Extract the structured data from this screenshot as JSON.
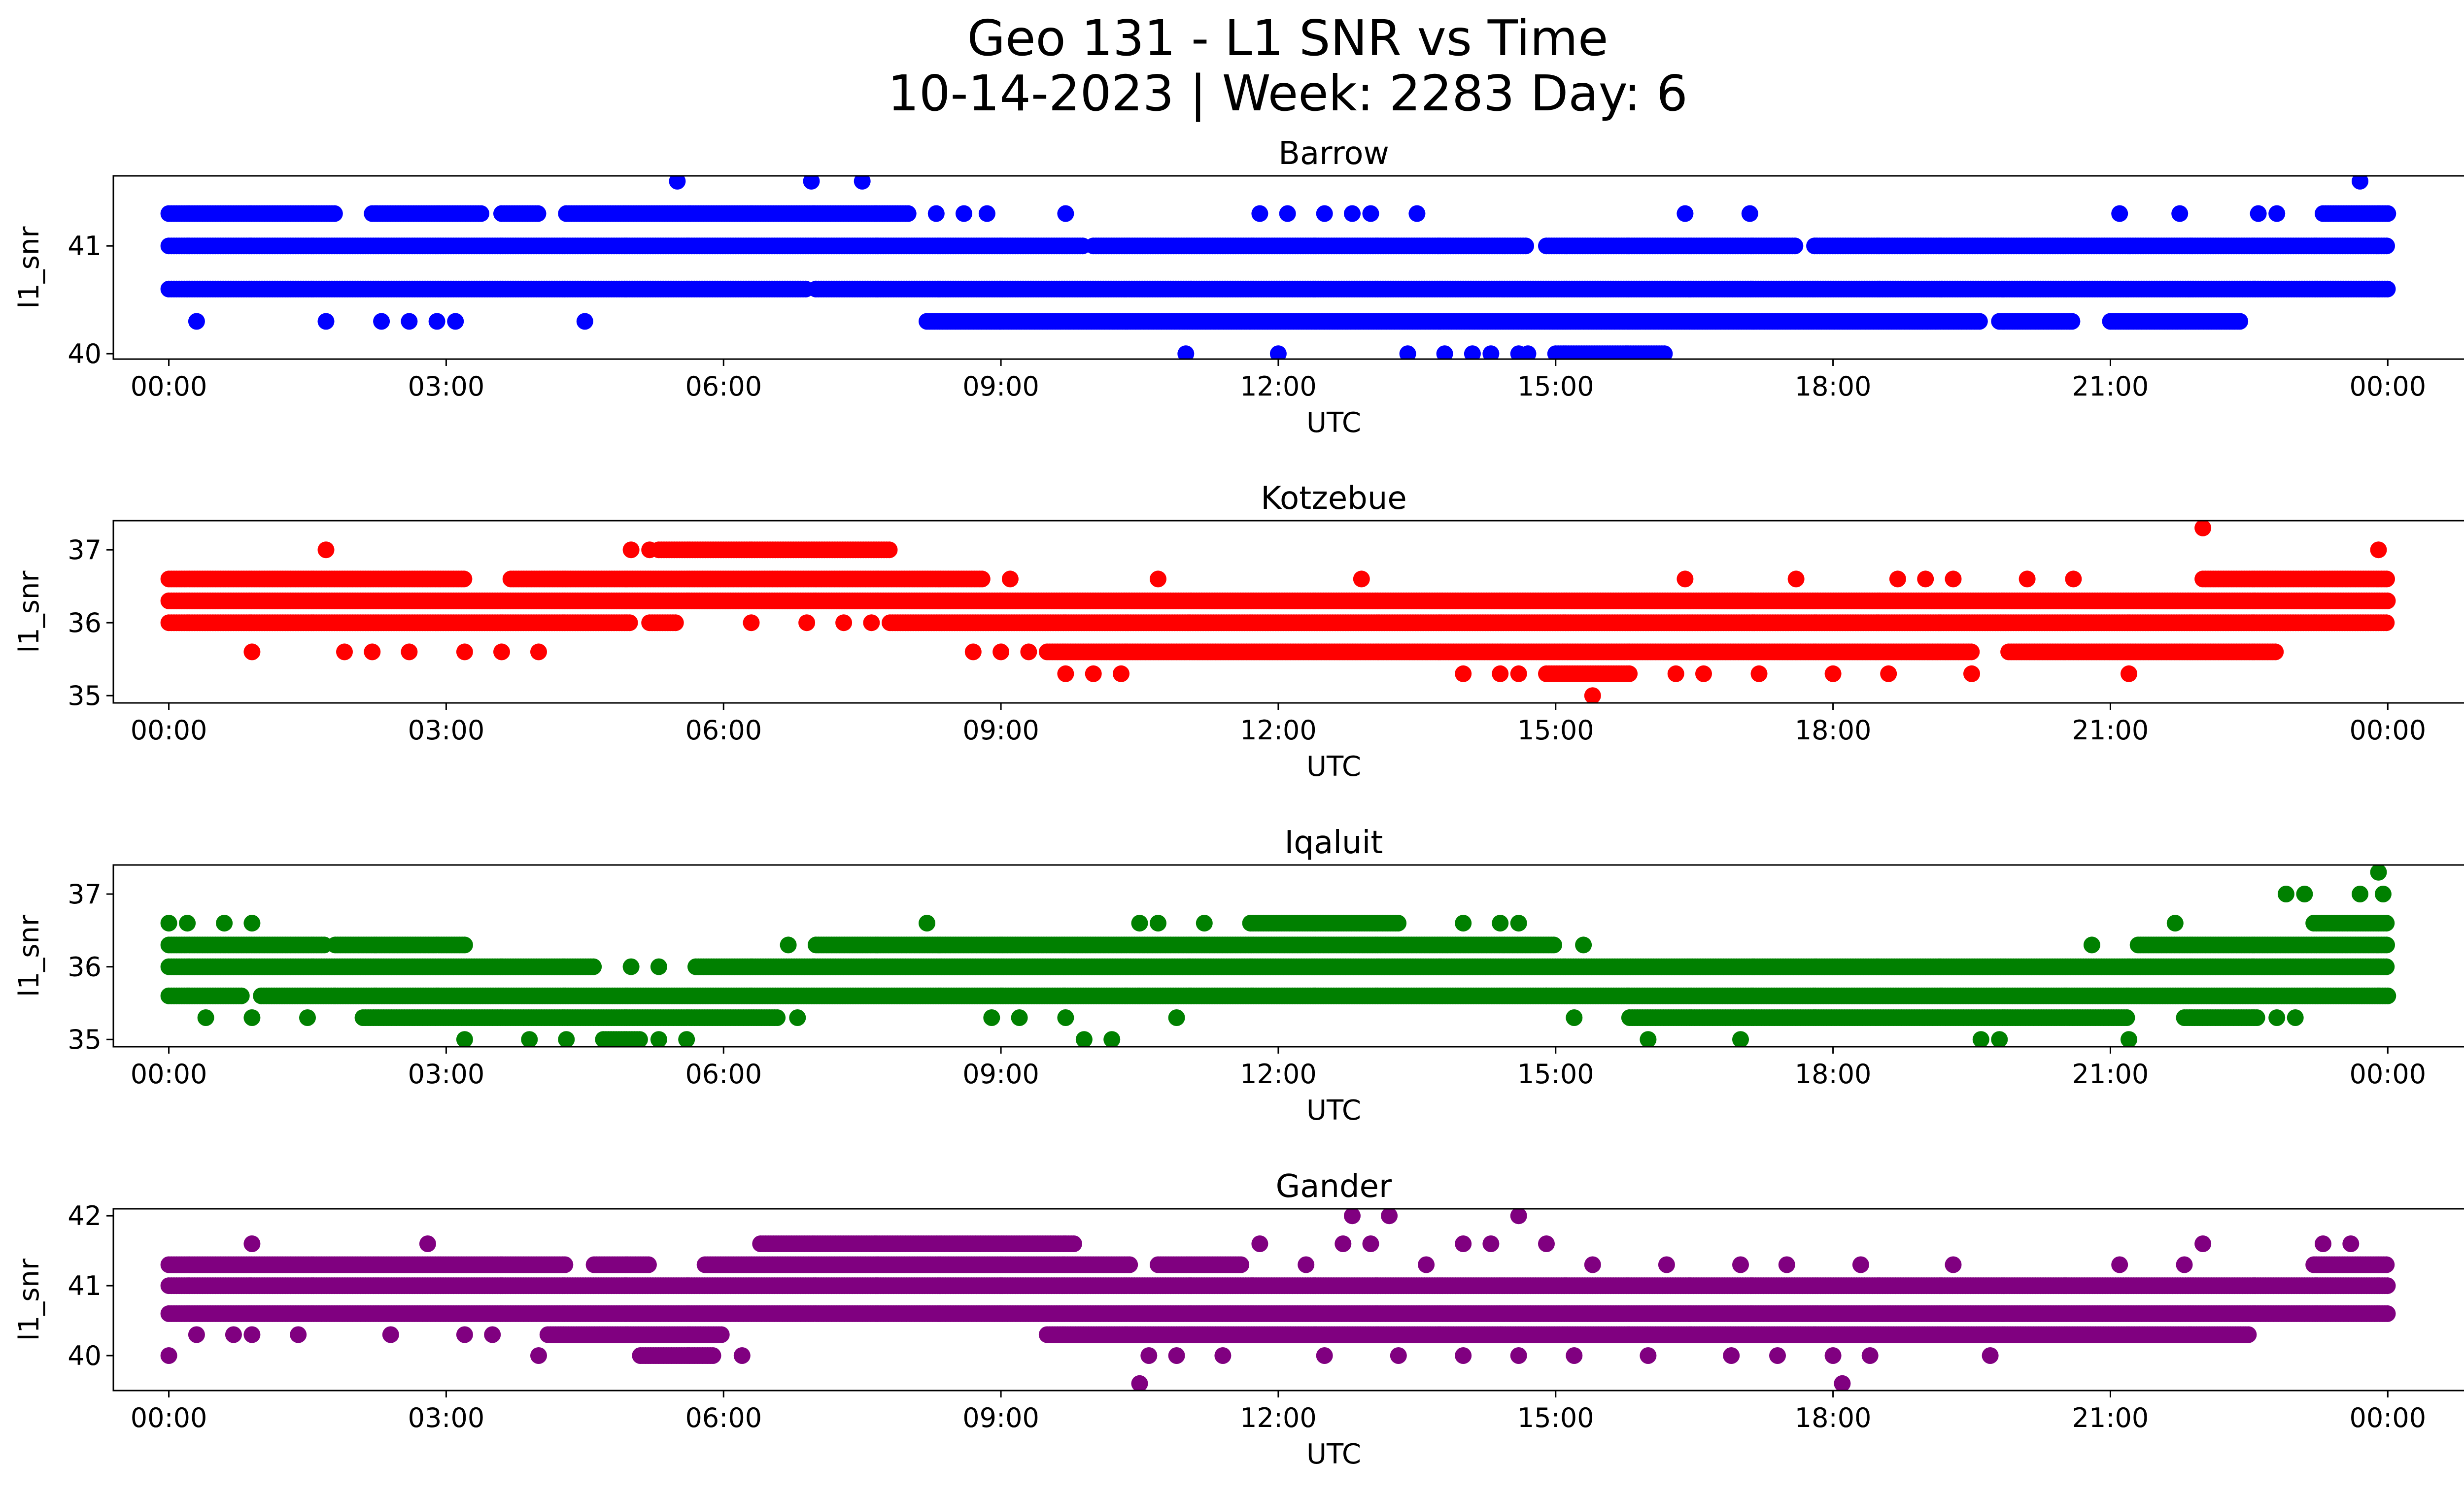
{
  "figure": {
    "title_line1": "Geo 131 - L1 SNR vs Time",
    "title_line2": "10-14-2023 | Week: 2283 Day: 6"
  },
  "chart_data": [
    {
      "type": "scatter",
      "title": "Barrow",
      "xlabel": "UTC",
      "ylabel": "l1_snr",
      "color": "#0000ff",
      "x_unit": "hours UTC",
      "xlim": [
        -0.6,
        25.8
      ],
      "ylim": [
        39.95,
        41.65
      ],
      "xticks": [
        0,
        3,
        6,
        9,
        12,
        15,
        18,
        21,
        24
      ],
      "xtick_labels": [
        "00:00",
        "03:00",
        "06:00",
        "09:00",
        "12:00",
        "15:00",
        "18:00",
        "21:00",
        "00:00"
      ],
      "yticks": [
        40,
        41
      ],
      "yticks_labels": [
        "40",
        "41"
      ],
      "bands": [
        {
          "y": 41.0,
          "ranges": [
            [
              0.0,
              9.9
            ],
            [
              10.0,
              14.7
            ],
            [
              14.9,
              17.6
            ],
            [
              17.8,
              24.0
            ]
          ]
        },
        {
          "y": 40.6,
          "ranges": [
            [
              0.0,
              6.9
            ],
            [
              7.0,
              24.0
            ]
          ]
        },
        {
          "y": 41.3,
          "ranges": [
            [
              0.0,
              1.8
            ],
            [
              2.2,
              3.4
            ],
            [
              3.6,
              4.0
            ],
            [
              4.3,
              8.0
            ],
            [
              23.3,
              24.0
            ]
          ]
        },
        {
          "y": 40.3,
          "ranges": [
            [
              8.2,
              9.0
            ],
            [
              9.0,
              19.6
            ],
            [
              19.8,
              20.6
            ],
            [
              21.0,
              22.4
            ]
          ]
        },
        {
          "y": 40.0,
          "ranges": [
            [
              15.0,
              16.2
            ]
          ]
        }
      ],
      "points": [
        {
          "y": 41.6,
          "x": [
            5.5,
            6.95,
            7.5,
            23.7
          ]
        },
        {
          "y": 41.3,
          "x": [
            8.3,
            8.6,
            8.85,
            9.7,
            11.8,
            12.1,
            12.5,
            12.8,
            13.0,
            13.5,
            16.4,
            17.1,
            21.1,
            21.75,
            22.6,
            22.8
          ]
        },
        {
          "y": 40.3,
          "x": [
            0.3,
            1.7,
            2.3,
            2.6,
            2.9,
            3.1,
            4.5
          ]
        },
        {
          "y": 40.0,
          "x": [
            11.0,
            12.0,
            13.4,
            13.8,
            14.1,
            14.3,
            14.6,
            14.7
          ]
        }
      ]
    },
    {
      "type": "scatter",
      "title": "Kotzebue",
      "xlabel": "UTC",
      "ylabel": "l1_snr",
      "color": "#ff0000",
      "x_unit": "hours UTC",
      "xlim": [
        -0.6,
        25.8
      ],
      "ylim": [
        34.9,
        37.4
      ],
      "xticks": [
        0,
        3,
        6,
        9,
        12,
        15,
        18,
        21,
        24
      ],
      "xtick_labels": [
        "00:00",
        "03:00",
        "06:00",
        "09:00",
        "12:00",
        "15:00",
        "18:00",
        "21:00",
        "00:00"
      ],
      "yticks": [
        35,
        36,
        37
      ],
      "yticks_labels": [
        "35",
        "36",
        "37"
      ],
      "bands": [
        {
          "y": 36.3,
          "ranges": [
            [
              0.0,
              24.0
            ]
          ]
        },
        {
          "y": 36.0,
          "ranges": [
            [
              0.0,
              5.0
            ],
            [
              5.2,
              5.5
            ],
            [
              7.8,
              24.0
            ]
          ]
        },
        {
          "y": 36.6,
          "ranges": [
            [
              0.0,
              3.2
            ],
            [
              3.7,
              8.8
            ],
            [
              22.0,
              24.0
            ]
          ]
        },
        {
          "y": 35.6,
          "ranges": [
            [
              9.5,
              19.5
            ],
            [
              19.9,
              22.8
            ]
          ]
        },
        {
          "y": 37.0,
          "ranges": [
            [
              5.3,
              7.8
            ]
          ]
        },
        {
          "y": 35.3,
          "ranges": [
            [
              14.9,
              15.8
            ]
          ]
        }
      ],
      "points": [
        {
          "y": 37.3,
          "x": [
            22.0
          ]
        },
        {
          "y": 37.0,
          "x": [
            1.7,
            5.0,
            5.2,
            23.9
          ]
        },
        {
          "y": 36.6,
          "x": [
            9.1,
            10.7,
            12.9,
            16.4,
            17.6,
            18.7,
            19.0,
            19.3,
            20.1,
            20.6
          ]
        },
        {
          "y": 36.0,
          "x": [
            6.3,
            6.9,
            7.3,
            7.6
          ]
        },
        {
          "y": 35.6,
          "x": [
            0.9,
            1.9,
            2.2,
            2.6,
            3.2,
            3.6,
            4.0,
            8.7,
            9.0,
            9.3
          ]
        },
        {
          "y": 35.3,
          "x": [
            9.7,
            10.0,
            10.3,
            14.0,
            14.4,
            14.6,
            16.3,
            16.6,
            17.2,
            18.0,
            18.6,
            19.5,
            21.2
          ]
        },
        {
          "y": 35.0,
          "x": [
            15.4
          ]
        }
      ]
    },
    {
      "type": "scatter",
      "title": "Iqaluit",
      "xlabel": "UTC",
      "ylabel": "l1_snr",
      "color": "#008000",
      "x_unit": "hours UTC",
      "xlim": [
        -0.6,
        25.8
      ],
      "ylim": [
        34.9,
        37.4
      ],
      "xticks": [
        0,
        3,
        6,
        9,
        12,
        15,
        18,
        21,
        24
      ],
      "xtick_labels": [
        "00:00",
        "03:00",
        "06:00",
        "09:00",
        "12:00",
        "15:00",
        "18:00",
        "21:00",
        "00:00"
      ],
      "yticks": [
        35,
        36,
        37
      ],
      "yticks_labels": [
        "35",
        "36",
        "37"
      ],
      "bands": [
        {
          "y": 36.0,
          "ranges": [
            [
              0.0,
              4.6
            ],
            [
              5.7,
              24.0
            ]
          ]
        },
        {
          "y": 35.6,
          "ranges": [
            [
              0.0,
              0.8
            ],
            [
              1.0,
              1.8
            ],
            [
              1.8,
              10.5
            ],
            [
              10.5,
              14.9
            ],
            [
              14.9,
              24.0
            ]
          ]
        },
        {
          "y": 36.3,
          "ranges": [
            [
              0.0,
              1.7
            ],
            [
              1.8,
              3.2
            ],
            [
              7.0,
              15.0
            ],
            [
              21.3,
              24.0
            ]
          ]
        },
        {
          "y": 35.3,
          "ranges": [
            [
              2.1,
              6.6
            ],
            [
              15.8,
              21.2
            ],
            [
              21.8,
              22.6
            ]
          ]
        },
        {
          "y": 36.6,
          "ranges": [
            [
              11.7,
              13.3
            ],
            [
              23.2,
              24.0
            ]
          ]
        },
        {
          "y": 35.0,
          "ranges": [
            [
              4.7,
              5.1
            ]
          ]
        }
      ],
      "points": [
        {
          "y": 37.3,
          "x": [
            23.9
          ]
        },
        {
          "y": 37.0,
          "x": [
            22.9,
            23.1,
            23.7,
            23.95
          ]
        },
        {
          "y": 36.6,
          "x": [
            0.0,
            0.2,
            0.6,
            0.9,
            8.2,
            10.5,
            10.7,
            11.2,
            14.0,
            14.4,
            14.6,
            21.7
          ]
        },
        {
          "y": 36.3,
          "x": [
            6.7,
            15.3,
            20.8
          ]
        },
        {
          "y": 36.0,
          "x": [
            5.0,
            5.3
          ]
        },
        {
          "y": 35.3,
          "x": [
            0.4,
            0.9,
            1.5,
            6.8,
            8.9,
            9.2,
            9.7,
            10.9,
            15.2,
            22.8,
            23.0
          ]
        },
        {
          "y": 35.0,
          "x": [
            3.2,
            3.9,
            4.3,
            5.3,
            5.6,
            9.9,
            10.2,
            16.0,
            17.0,
            19.6,
            19.8,
            21.2
          ]
        }
      ]
    },
    {
      "type": "scatter",
      "title": "Gander",
      "xlabel": "UTC",
      "ylabel": "l1_snr",
      "color": "#800080",
      "x_unit": "hours UTC",
      "xlim": [
        -0.6,
        25.8
      ],
      "ylim": [
        39.5,
        42.1
      ],
      "xticks": [
        0,
        3,
        6,
        9,
        12,
        15,
        18,
        21,
        24
      ],
      "xtick_labels": [
        "00:00",
        "03:00",
        "06:00",
        "09:00",
        "12:00",
        "15:00",
        "18:00",
        "21:00",
        "00:00"
      ],
      "yticks": [
        40,
        41,
        42
      ],
      "yticks_labels": [
        "40",
        "41",
        "42"
      ],
      "bands": [
        {
          "y": 41.0,
          "ranges": [
            [
              0.0,
              24.0
            ]
          ]
        },
        {
          "y": 40.6,
          "ranges": [
            [
              0.0,
              24.0
            ]
          ]
        },
        {
          "y": 41.3,
          "ranges": [
            [
              0.0,
              4.3
            ],
            [
              4.6,
              5.2
            ],
            [
              5.8,
              10.4
            ],
            [
              10.7,
              11.6
            ],
            [
              23.2,
              24.0
            ]
          ]
        },
        {
          "y": 40.3,
          "ranges": [
            [
              4.1,
              6.0
            ],
            [
              9.5,
              22.5
            ]
          ]
        },
        {
          "y": 41.6,
          "ranges": [
            [
              6.4,
              9.8
            ]
          ]
        },
        {
          "y": 40.0,
          "ranges": [
            [
              5.1,
              5.9
            ]
          ]
        }
      ],
      "points": [
        {
          "y": 42.0,
          "x": [
            12.8,
            13.2,
            14.6
          ]
        },
        {
          "y": 41.6,
          "x": [
            0.9,
            2.8,
            11.8,
            12.7,
            13.0,
            14.0,
            14.3,
            14.9,
            22.0,
            23.3,
            23.6
          ]
        },
        {
          "y": 41.3,
          "x": [
            12.3,
            13.6,
            15.4,
            16.2,
            17.0,
            17.5,
            18.3,
            19.3,
            21.1,
            21.8
          ]
        },
        {
          "y": 40.3,
          "x": [
            0.3,
            0.7,
            0.9,
            1.4,
            2.4,
            3.2,
            3.5
          ]
        },
        {
          "y": 40.0,
          "x": [
            0.0,
            4.0,
            6.2,
            10.6,
            10.9,
            11.4,
            12.5,
            13.3,
            14.0,
            14.6,
            15.2,
            16.0,
            16.9,
            17.4,
            18.0,
            18.4,
            19.7
          ]
        },
        {
          "y": 39.6,
          "x": [
            10.5,
            18.1
          ]
        }
      ]
    }
  ]
}
